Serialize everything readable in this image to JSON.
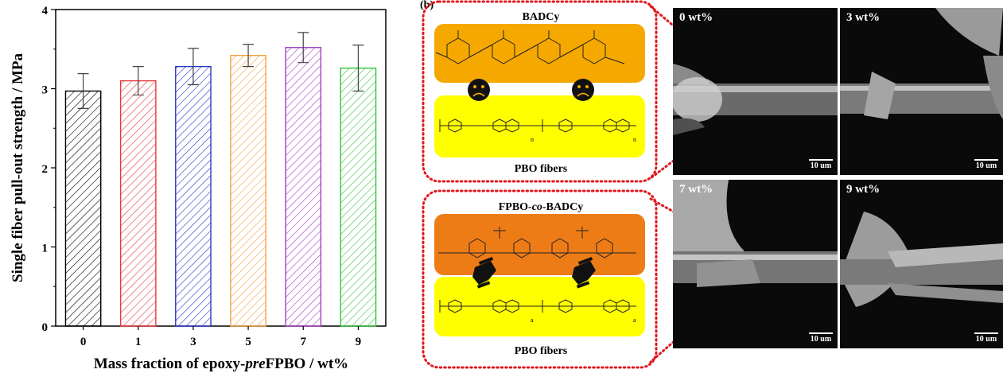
{
  "panel_marker": "(b)",
  "chart_data": {
    "type": "bar",
    "categories": [
      "0",
      "1",
      "3",
      "5",
      "7",
      "9"
    ],
    "values": [
      2.97,
      3.1,
      3.28,
      3.42,
      3.52,
      3.26
    ],
    "errors": [
      0.22,
      0.18,
      0.23,
      0.14,
      0.19,
      0.29
    ],
    "bar_colors": [
      "#000000",
      "#e8383d",
      "#2a32c8",
      "#f5a040",
      "#a23cc3",
      "#35c63b"
    ],
    "xlabel_parts": [
      "Mass fraction of epoxy-",
      "pre",
      "FPBO / wt%"
    ],
    "ylabel": "Single fiber pull-out strength / MPa",
    "ylim": [
      0,
      4
    ],
    "yticks": [
      "0",
      "1",
      "2",
      "3",
      "4"
    ],
    "hatch": "diagonal",
    "grid": false
  },
  "schematic": {
    "top_title": "BADCy",
    "top_fiber_label": "PBO fibers",
    "bottom_title_parts": [
      "FPBO-",
      "co",
      "-BADCy"
    ],
    "bottom_fiber_label": "PBO fibers",
    "top_subscript": "n",
    "bottom_subscript": "a",
    "colors": {
      "resin_top": "#f5a800",
      "resin_bottom": "#ee7c16",
      "fiber": "#ffff00",
      "border": "#e0171e"
    }
  },
  "sem": {
    "panels": [
      {
        "label": "0 wt%",
        "scale": "10 um"
      },
      {
        "label": "3 wt%",
        "scale": "10 um"
      },
      {
        "label": "7 wt%",
        "scale": "10 um"
      },
      {
        "label": "9 wt%",
        "scale": "10 um"
      }
    ]
  }
}
